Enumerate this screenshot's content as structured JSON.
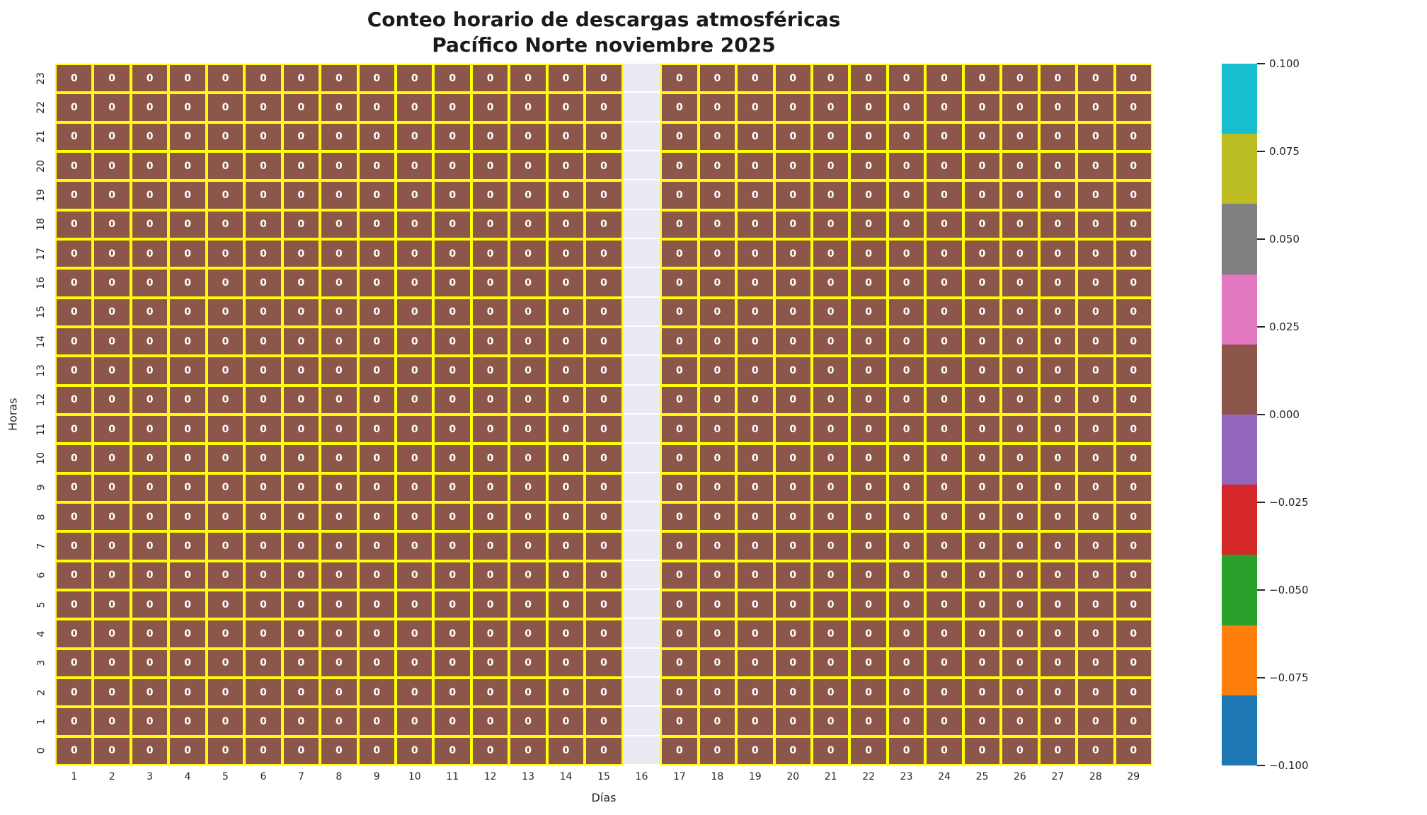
{
  "chart_data": {
    "type": "heatmap",
    "title_line1": "Conteo horario de descargas atmosféricas",
    "title_line2": "Pacífico Norte noviembre 2025",
    "xlabel": "Días",
    "ylabel": "Horas",
    "x_categories": [
      1,
      2,
      3,
      4,
      5,
      6,
      7,
      8,
      9,
      10,
      11,
      12,
      13,
      14,
      15,
      16,
      17,
      18,
      19,
      20,
      21,
      22,
      23,
      24,
      25,
      26,
      27,
      28,
      29
    ],
    "y_categories": [
      23,
      22,
      21,
      20,
      19,
      18,
      17,
      16,
      15,
      14,
      13,
      12,
      11,
      10,
      9,
      8,
      7,
      6,
      5,
      4,
      3,
      2,
      1,
      0
    ],
    "missing_x": [
      16
    ],
    "annotation_label": "0",
    "values": [
      [
        0,
        0,
        0,
        0,
        0,
        0,
        0,
        0,
        0,
        0,
        0,
        0,
        0,
        0,
        0,
        null,
        0,
        0,
        0,
        0,
        0,
        0,
        0,
        0,
        0,
        0,
        0,
        0,
        0
      ],
      [
        0,
        0,
        0,
        0,
        0,
        0,
        0,
        0,
        0,
        0,
        0,
        0,
        0,
        0,
        0,
        null,
        0,
        0,
        0,
        0,
        0,
        0,
        0,
        0,
        0,
        0,
        0,
        0,
        0
      ],
      [
        0,
        0,
        0,
        0,
        0,
        0,
        0,
        0,
        0,
        0,
        0,
        0,
        0,
        0,
        0,
        null,
        0,
        0,
        0,
        0,
        0,
        0,
        0,
        0,
        0,
        0,
        0,
        0,
        0
      ],
      [
        0,
        0,
        0,
        0,
        0,
        0,
        0,
        0,
        0,
        0,
        0,
        0,
        0,
        0,
        0,
        null,
        0,
        0,
        0,
        0,
        0,
        0,
        0,
        0,
        0,
        0,
        0,
        0,
        0
      ],
      [
        0,
        0,
        0,
        0,
        0,
        0,
        0,
        0,
        0,
        0,
        0,
        0,
        0,
        0,
        0,
        null,
        0,
        0,
        0,
        0,
        0,
        0,
        0,
        0,
        0,
        0,
        0,
        0,
        0
      ],
      [
        0,
        0,
        0,
        0,
        0,
        0,
        0,
        0,
        0,
        0,
        0,
        0,
        0,
        0,
        0,
        null,
        0,
        0,
        0,
        0,
        0,
        0,
        0,
        0,
        0,
        0,
        0,
        0,
        0
      ],
      [
        0,
        0,
        0,
        0,
        0,
        0,
        0,
        0,
        0,
        0,
        0,
        0,
        0,
        0,
        0,
        null,
        0,
        0,
        0,
        0,
        0,
        0,
        0,
        0,
        0,
        0,
        0,
        0,
        0
      ],
      [
        0,
        0,
        0,
        0,
        0,
        0,
        0,
        0,
        0,
        0,
        0,
        0,
        0,
        0,
        0,
        null,
        0,
        0,
        0,
        0,
        0,
        0,
        0,
        0,
        0,
        0,
        0,
        0,
        0
      ],
      [
        0,
        0,
        0,
        0,
        0,
        0,
        0,
        0,
        0,
        0,
        0,
        0,
        0,
        0,
        0,
        null,
        0,
        0,
        0,
        0,
        0,
        0,
        0,
        0,
        0,
        0,
        0,
        0,
        0
      ],
      [
        0,
        0,
        0,
        0,
        0,
        0,
        0,
        0,
        0,
        0,
        0,
        0,
        0,
        0,
        0,
        null,
        0,
        0,
        0,
        0,
        0,
        0,
        0,
        0,
        0,
        0,
        0,
        0,
        0
      ],
      [
        0,
        0,
        0,
        0,
        0,
        0,
        0,
        0,
        0,
        0,
        0,
        0,
        0,
        0,
        0,
        null,
        0,
        0,
        0,
        0,
        0,
        0,
        0,
        0,
        0,
        0,
        0,
        0,
        0
      ],
      [
        0,
        0,
        0,
        0,
        0,
        0,
        0,
        0,
        0,
        0,
        0,
        0,
        0,
        0,
        0,
        null,
        0,
        0,
        0,
        0,
        0,
        0,
        0,
        0,
        0,
        0,
        0,
        0,
        0
      ],
      [
        0,
        0,
        0,
        0,
        0,
        0,
        0,
        0,
        0,
        0,
        0,
        0,
        0,
        0,
        0,
        null,
        0,
        0,
        0,
        0,
        0,
        0,
        0,
        0,
        0,
        0,
        0,
        0,
        0
      ],
      [
        0,
        0,
        0,
        0,
        0,
        0,
        0,
        0,
        0,
        0,
        0,
        0,
        0,
        0,
        0,
        null,
        0,
        0,
        0,
        0,
        0,
        0,
        0,
        0,
        0,
        0,
        0,
        0,
        0
      ],
      [
        0,
        0,
        0,
        0,
        0,
        0,
        0,
        0,
        0,
        0,
        0,
        0,
        0,
        0,
        0,
        null,
        0,
        0,
        0,
        0,
        0,
        0,
        0,
        0,
        0,
        0,
        0,
        0,
        0
      ],
      [
        0,
        0,
        0,
        0,
        0,
        0,
        0,
        0,
        0,
        0,
        0,
        0,
        0,
        0,
        0,
        null,
        0,
        0,
        0,
        0,
        0,
        0,
        0,
        0,
        0,
        0,
        0,
        0,
        0
      ],
      [
        0,
        0,
        0,
        0,
        0,
        0,
        0,
        0,
        0,
        0,
        0,
        0,
        0,
        0,
        0,
        null,
        0,
        0,
        0,
        0,
        0,
        0,
        0,
        0,
        0,
        0,
        0,
        0,
        0
      ],
      [
        0,
        0,
        0,
        0,
        0,
        0,
        0,
        0,
        0,
        0,
        0,
        0,
        0,
        0,
        0,
        null,
        0,
        0,
        0,
        0,
        0,
        0,
        0,
        0,
        0,
        0,
        0,
        0,
        0
      ],
      [
        0,
        0,
        0,
        0,
        0,
        0,
        0,
        0,
        0,
        0,
        0,
        0,
        0,
        0,
        0,
        null,
        0,
        0,
        0,
        0,
        0,
        0,
        0,
        0,
        0,
        0,
        0,
        0,
        0
      ],
      [
        0,
        0,
        0,
        0,
        0,
        0,
        0,
        0,
        0,
        0,
        0,
        0,
        0,
        0,
        0,
        null,
        0,
        0,
        0,
        0,
        0,
        0,
        0,
        0,
        0,
        0,
        0,
        0,
        0
      ],
      [
        0,
        0,
        0,
        0,
        0,
        0,
        0,
        0,
        0,
        0,
        0,
        0,
        0,
        0,
        0,
        null,
        0,
        0,
        0,
        0,
        0,
        0,
        0,
        0,
        0,
        0,
        0,
        0,
        0
      ],
      [
        0,
        0,
        0,
        0,
        0,
        0,
        0,
        0,
        0,
        0,
        0,
        0,
        0,
        0,
        0,
        null,
        0,
        0,
        0,
        0,
        0,
        0,
        0,
        0,
        0,
        0,
        0,
        0,
        0
      ],
      [
        0,
        0,
        0,
        0,
        0,
        0,
        0,
        0,
        0,
        0,
        0,
        0,
        0,
        0,
        0,
        null,
        0,
        0,
        0,
        0,
        0,
        0,
        0,
        0,
        0,
        0,
        0,
        0,
        0
      ],
      [
        0,
        0,
        0,
        0,
        0,
        0,
        0,
        0,
        0,
        0,
        0,
        0,
        0,
        0,
        0,
        null,
        0,
        0,
        0,
        0,
        0,
        0,
        0,
        0,
        0,
        0,
        0,
        0,
        0
      ]
    ],
    "colorbar": {
      "vmin": -0.1,
      "vmax": 0.1,
      "tick_labels": [
        "0.100",
        "0.075",
        "0.050",
        "0.025",
        "0.000",
        "−0.025",
        "−0.050",
        "−0.075",
        "−0.100"
      ],
      "colors_top_to_bottom": [
        "#17becf",
        "#bcbd22",
        "#7f7f7f",
        "#e377c2",
        "#8c564b",
        "#9467bd",
        "#d62728",
        "#2ca02c",
        "#ff7f0e",
        "#1f77b4"
      ]
    },
    "colors": {
      "cell_fill": "#8c564b",
      "grid_line": "#ffff00",
      "missing_bg": "#eaeaf2",
      "annotation_text": "#ffffff",
      "axis_text": "#262626"
    },
    "legend_position": "right",
    "grid": "cell-borders"
  }
}
